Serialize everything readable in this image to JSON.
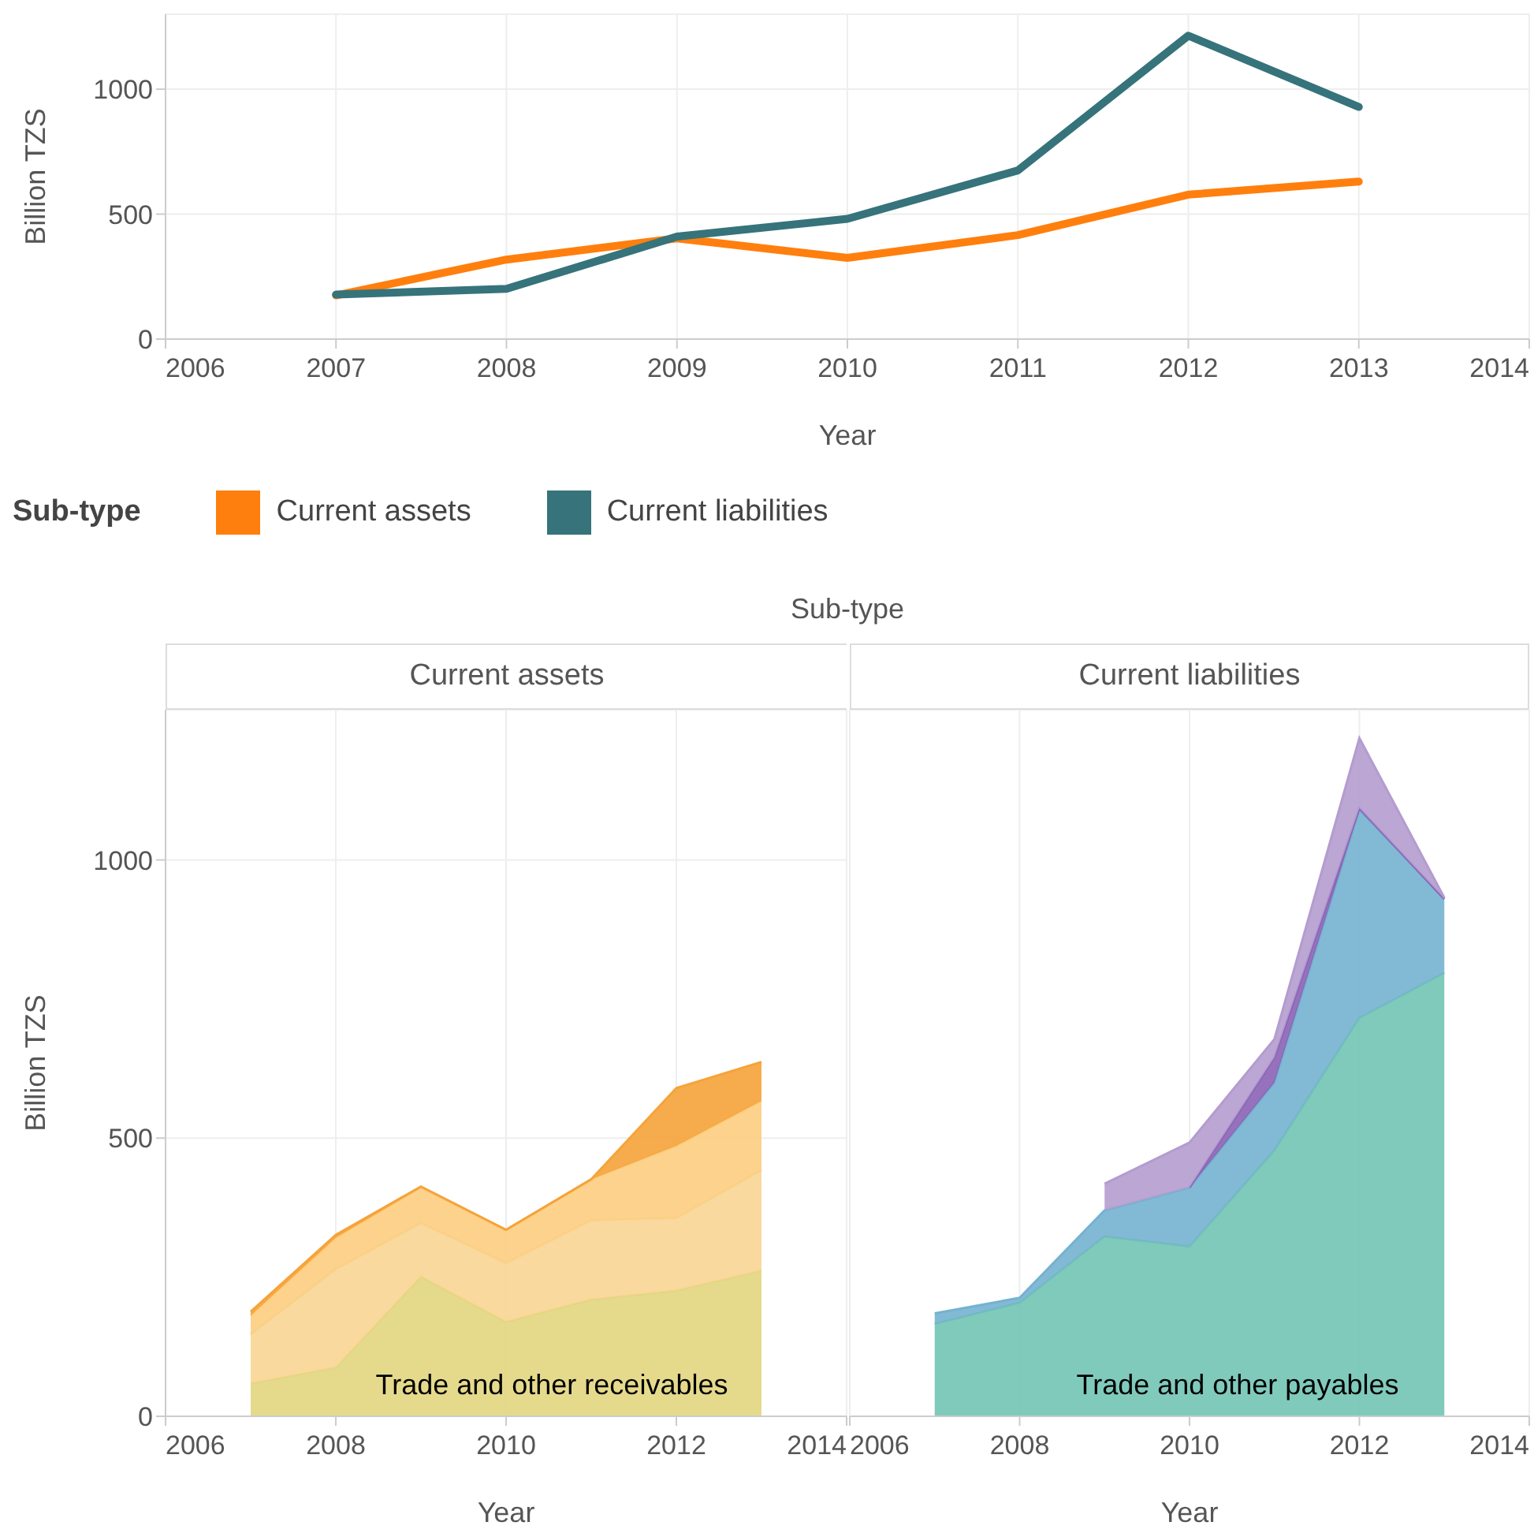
{
  "chart_data": [
    {
      "type": "line",
      "xlabel": "Year",
      "ylabel": "Billion TZS",
      "legend_title": "Sub-type",
      "legend": "bottom",
      "grid": true,
      "x": [
        2007,
        2008,
        2009,
        2010,
        2011,
        2012,
        2013
      ],
      "xlim": [
        2006,
        2014
      ],
      "xticks": [
        2006,
        2007,
        2008,
        2009,
        2010,
        2011,
        2012,
        2013,
        2014
      ],
      "ylim": [
        0,
        1300
      ],
      "yticks": [
        0,
        500,
        1000
      ],
      "series": [
        {
          "name": "Current assets",
          "color": "#ff7f0e",
          "values": [
            175,
            318,
            403,
            325,
            416,
            578,
            630
          ]
        },
        {
          "name": "Current liabilities",
          "color": "#36737b",
          "values": [
            178,
            201,
            410,
            481,
            675,
            1214,
            929
          ]
        }
      ]
    },
    {
      "type": "area",
      "title": "Current assets",
      "annotations": [
        "Sub-type"
      ],
      "xlabel": "Year",
      "ylabel": "Billion TZS",
      "stacked": true,
      "grid": true,
      "x": [
        2007,
        2008,
        2009,
        2010,
        2011,
        2012,
        2013
      ],
      "xlim": [
        2006,
        2014
      ],
      "xticks": [
        2006,
        2008,
        2010,
        2012,
        2014
      ],
      "ylim": [
        0,
        1270
      ],
      "yticks": [
        0,
        500,
        1000
      ],
      "series": [
        {
          "name": "Trade and other receivables",
          "color": "#e2d67f",
          "values": [
            59,
            88,
            251,
            170,
            210,
            226,
            262
          ]
        },
        {
          "color": "#f8d593",
          "values": [
            88,
            176,
            96,
            105,
            142,
            130,
            180
          ]
        },
        {
          "color": "#fccd7f",
          "values": [
            34,
            57,
            64,
            60,
            74,
            130,
            125
          ]
        },
        {
          "color": "#f5a33a",
          "values": [
            7,
            5,
            2,
            0,
            0,
            104,
            70
          ]
        }
      ]
    },
    {
      "type": "area",
      "title": "Current liabilities",
      "xlabel": "Year",
      "stacked": true,
      "grid": true,
      "tick_labels": "x",
      "x": [
        2007,
        2008,
        2009,
        2010,
        2011,
        2012,
        2013
      ],
      "xlim": [
        2006,
        2014
      ],
      "xticks": [
        2006,
        2008,
        2010,
        2012,
        2014
      ],
      "ylim": [
        0,
        1270
      ],
      "yticks": [
        0,
        500,
        1000
      ],
      "series": [
        {
          "name": "Trade and other payables",
          "color": "#72c4b5",
          "values": [
            166,
            204,
            323,
            305,
            478,
            716,
            797
          ]
        },
        {
          "color": "#74b2d0",
          "values": [
            19,
            9,
            47,
            106,
            122,
            374,
            133
          ]
        },
        {
          "color": "#8b63b6",
          "values": [
            null,
            null,
            null,
            0,
            45,
            3,
            0
          ]
        },
        {
          "color": "#b49ccf",
          "values": [
            null,
            null,
            48,
            81,
            33,
            126,
            2
          ]
        }
      ]
    }
  ]
}
